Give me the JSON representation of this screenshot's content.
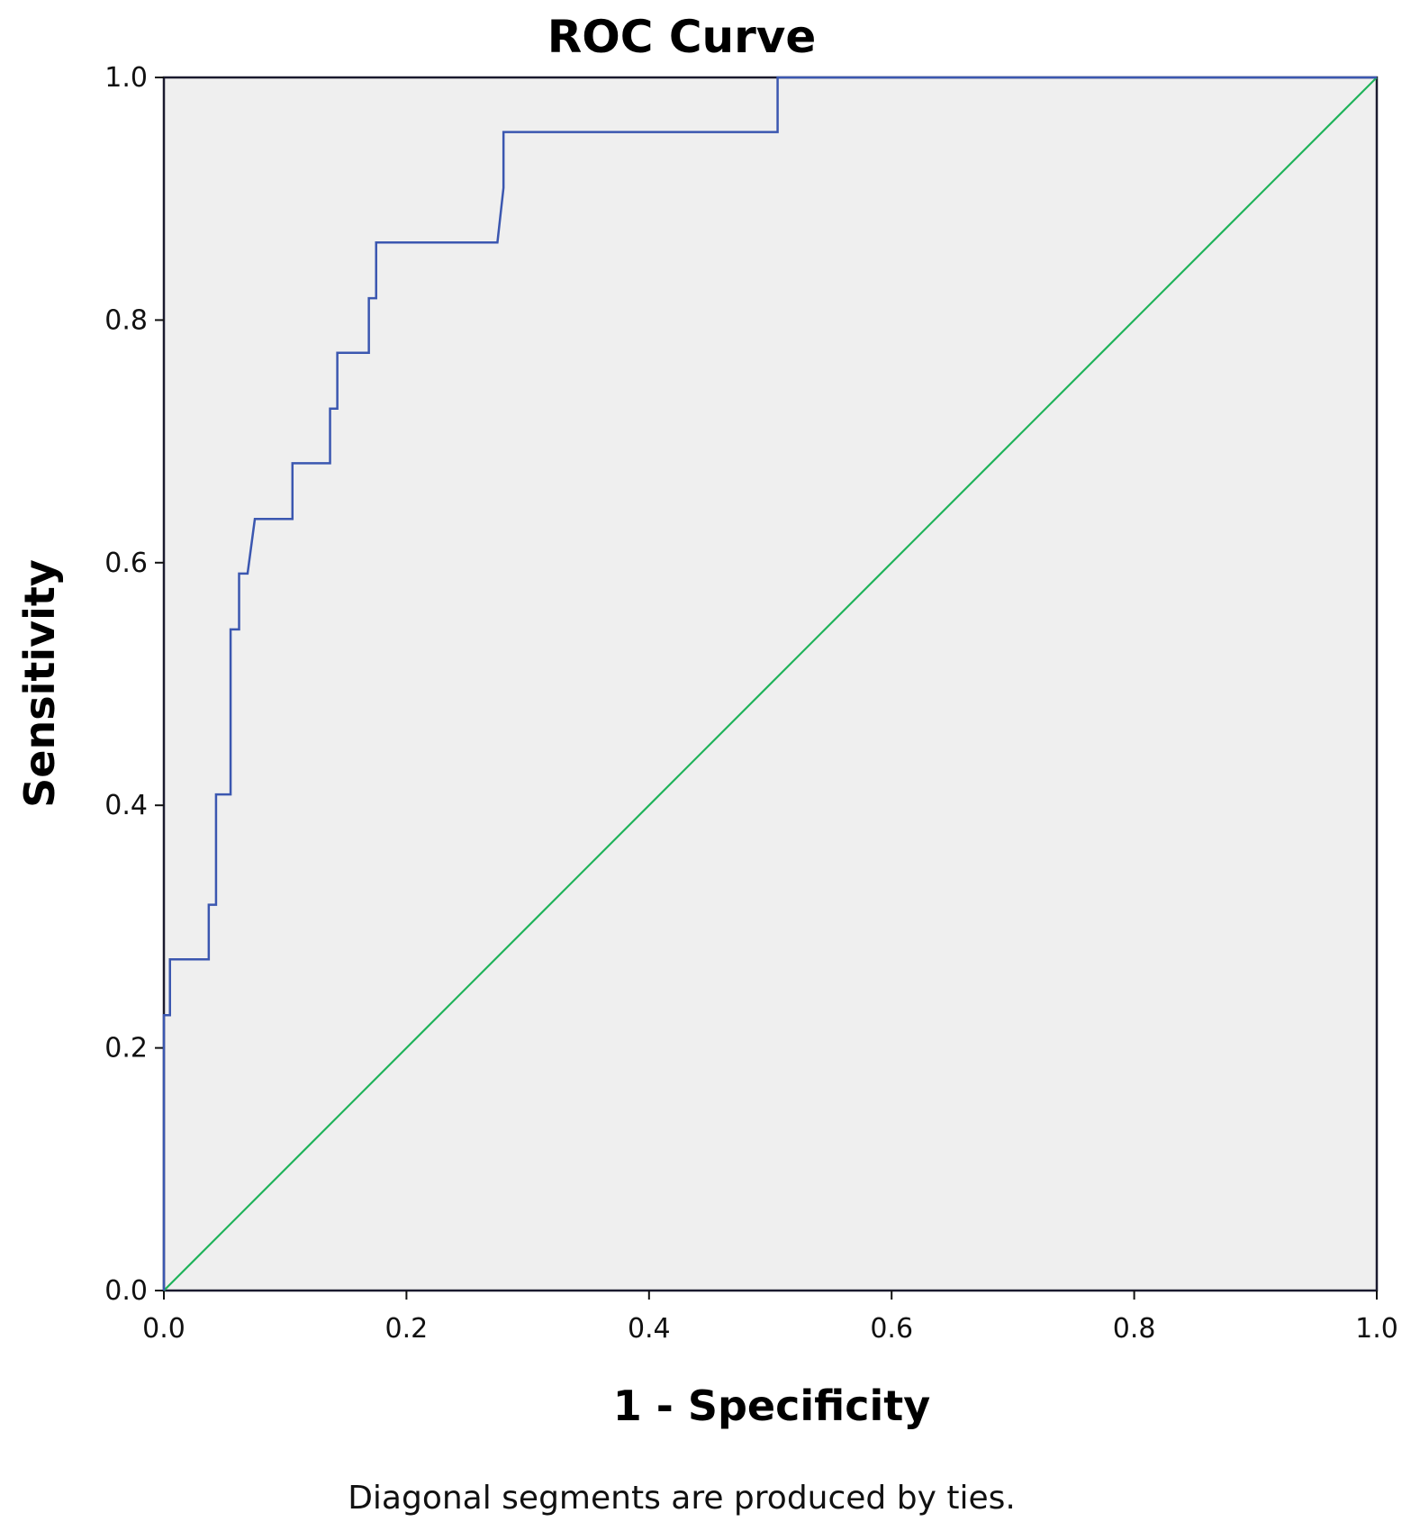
{
  "chart_data": {
    "type": "line",
    "title": "ROC Curve",
    "xlabel": "1 - Specificity",
    "ylabel": "Sensitivity",
    "footnote": "Diagonal segments are produced by ties.",
    "xlim": [
      0.0,
      1.0
    ],
    "ylim": [
      0.0,
      1.0
    ],
    "x_ticks": [
      "0.0",
      "0.2",
      "0.4",
      "0.6",
      "0.8",
      "1.0"
    ],
    "y_ticks": [
      "0.0",
      "0.2",
      "0.4",
      "0.6",
      "0.8",
      "1.0"
    ],
    "grid": false,
    "background_color": "#efefef",
    "series": [
      {
        "color": "#3b57b0",
        "x": [
          0.0,
          0.0,
          0.005,
          0.005,
          0.037,
          0.037,
          0.043,
          0.043,
          0.055,
          0.055,
          0.062,
          0.062,
          0.067,
          0.067,
          0.069,
          0.075,
          0.106,
          0.106,
          0.137,
          0.137,
          0.143,
          0.143,
          0.169,
          0.169,
          0.175,
          0.175,
          0.275,
          0.28,
          0.28,
          0.506,
          0.506,
          1.0
        ],
        "y": [
          0.0,
          0.227,
          0.227,
          0.273,
          0.273,
          0.318,
          0.318,
          0.409,
          0.409,
          0.545,
          0.545,
          0.591,
          0.591,
          0.591,
          0.591,
          0.636,
          0.636,
          0.682,
          0.682,
          0.727,
          0.727,
          0.773,
          0.773,
          0.818,
          0.818,
          0.864,
          0.864,
          0.909,
          0.955,
          0.955,
          1.0,
          1.0
        ]
      },
      {
        "color": "#1fb35a",
        "x": [
          0.0,
          1.0
        ],
        "y": [
          0.0,
          1.0
        ]
      }
    ]
  }
}
